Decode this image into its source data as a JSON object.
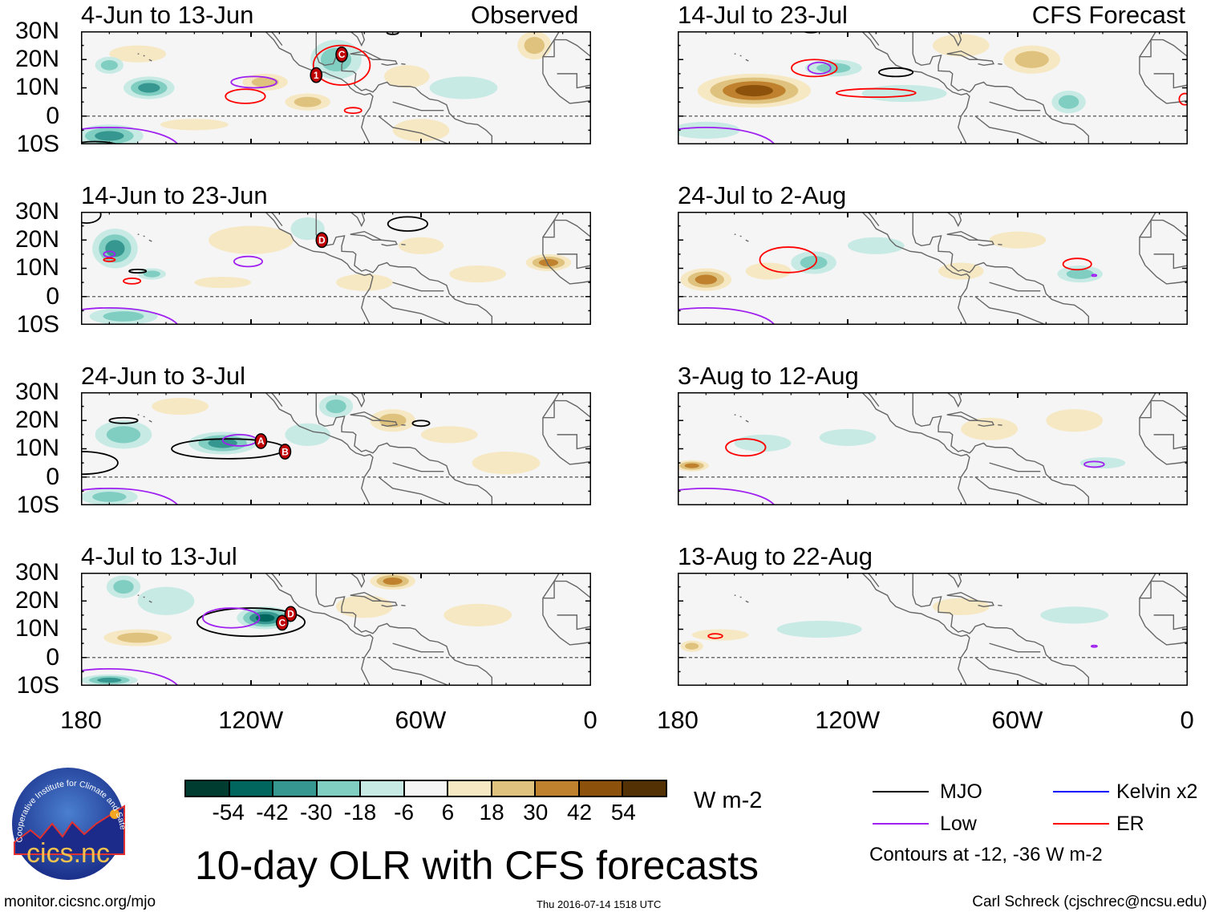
{
  "figure_title": "10-day OLR with CFS forecasts",
  "left_header_right": "Observed",
  "right_header_right": "CFS Forecast",
  "lat_labels": [
    "30N",
    "20N",
    "10N",
    "0",
    "10S"
  ],
  "lon_labels": [
    "180",
    "120W",
    "60W",
    "0"
  ],
  "panels": [
    {
      "title": "4-Jun to 13-Jun",
      "storms": [
        {
          "label": "1",
          "lon": -97,
          "lat": 14.5
        },
        {
          "label": "C",
          "lon": -88,
          "lat": 21.8
        }
      ]
    },
    {
      "title": "14-Jun to 23-Jun",
      "storms": [
        {
          "label": "D",
          "lon": -95,
          "lat": 20
        }
      ]
    },
    {
      "title": "24-Jun to 3-Jul",
      "storms": [
        {
          "label": "A",
          "lon": -116.5,
          "lat": 12.7
        },
        {
          "label": "B",
          "lon": -108,
          "lat": 9
        }
      ]
    },
    {
      "title": "4-Jul to 13-Jul",
      "storms": [
        {
          "label": "D",
          "lon": -106,
          "lat": 15.4
        },
        {
          "label": "C",
          "lon": -109,
          "lat": 12.3
        }
      ]
    },
    {
      "title": "14-Jul to 23-Jul",
      "storms": []
    },
    {
      "title": "24-Jul to 2-Aug",
      "storms": []
    },
    {
      "title": "3-Aug to 12-Aug",
      "storms": []
    },
    {
      "title": "13-Aug to 22-Aug",
      "storms": []
    }
  ],
  "colorbar": {
    "colors": [
      "#003c30",
      "#01665e",
      "#35978f",
      "#80cdc1",
      "#c7eae5",
      "#f5f5f5",
      "#f6e8c3",
      "#dfc27d",
      "#bf812d",
      "#8c510a",
      "#543005"
    ],
    "labels": [
      "-54",
      "-42",
      "-30",
      "-18",
      "-6",
      "6",
      "18",
      "30",
      "42",
      "54"
    ],
    "units": "W m-2"
  },
  "legend": {
    "items": [
      {
        "label": "MJO",
        "color": "#000000"
      },
      {
        "label": "Low",
        "color": "#a020f0"
      },
      {
        "label": "Kelvin x2",
        "color": "#0000ff"
      },
      {
        "label": "ER",
        "color": "#ff0000"
      }
    ],
    "note": "Contours at -12, -36 W m-2"
  },
  "logo": {
    "arc_text": "Cooperative Institute for Climate and Satellites",
    "name": "cics.nc"
  },
  "footer": {
    "url": "monitor.cicsnc.org/mjo",
    "timestamp": "Thu 2016-07-14 1518 UTC",
    "credit": "Carl Schreck (cjschrec@ncsu.edu)"
  }
}
